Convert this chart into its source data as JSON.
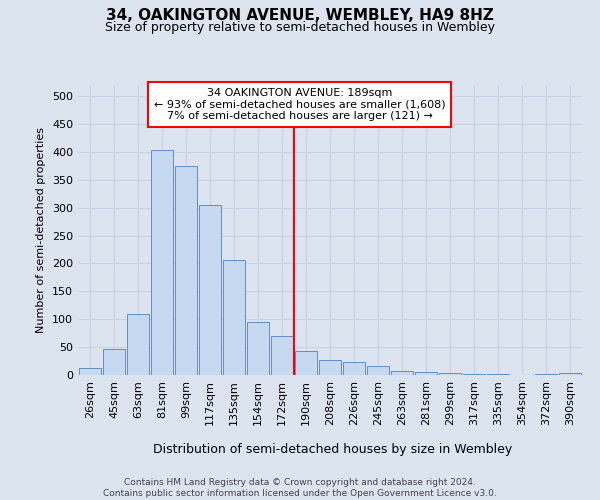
{
  "title": "34, OAKINGTON AVENUE, WEMBLEY, HA9 8HZ",
  "subtitle": "Size of property relative to semi-detached houses in Wembley",
  "xlabel": "Distribution of semi-detached houses by size in Wembley",
  "ylabel": "Number of semi-detached properties",
  "footer_line1": "Contains HM Land Registry data © Crown copyright and database right 2024.",
  "footer_line2": "Contains public sector information licensed under the Open Government Licence v3.0.",
  "annotation_title": "34 OAKINGTON AVENUE: 189sqm",
  "annotation_line2": "← 93% of semi-detached houses are smaller (1,608)",
  "annotation_line3": "7% of semi-detached houses are larger (121) →",
  "bar_color": "#c6d9f0",
  "bar_edge_color": "#4f81bd",
  "vline_color": "red",
  "categories": [
    "26sqm",
    "45sqm",
    "63sqm",
    "81sqm",
    "99sqm",
    "117sqm",
    "135sqm",
    "154sqm",
    "172sqm",
    "190sqm",
    "208sqm",
    "226sqm",
    "245sqm",
    "263sqm",
    "281sqm",
    "299sqm",
    "317sqm",
    "335sqm",
    "354sqm",
    "372sqm",
    "390sqm"
  ],
  "values": [
    12,
    47,
    110,
    403,
    375,
    305,
    207,
    95,
    70,
    43,
    27,
    24,
    16,
    8,
    5,
    3,
    1,
    1,
    0,
    1,
    3
  ],
  "ylim": [
    0,
    520
  ],
  "yticks": [
    0,
    50,
    100,
    150,
    200,
    250,
    300,
    350,
    400,
    450,
    500
  ],
  "grid_color": "#c8d4e4",
  "background_color": "#dce4f0",
  "vline_x_index": 9,
  "title_fontsize": 11,
  "subtitle_fontsize": 9,
  "footer_fontsize": 6.5
}
